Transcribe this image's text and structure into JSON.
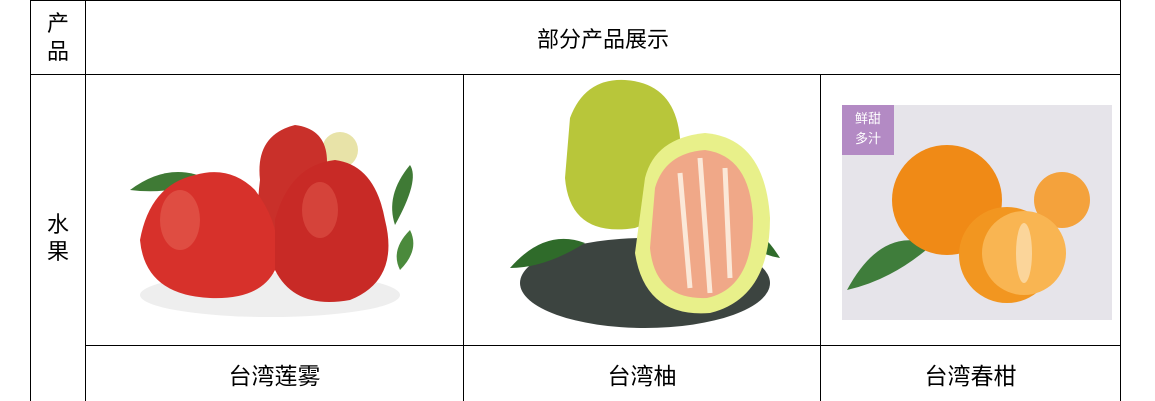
{
  "table": {
    "header": {
      "label": "产品",
      "title": "部分产品展示"
    },
    "category": "水果",
    "products": [
      {
        "name": "台湾莲雾"
      },
      {
        "name": "台湾柚"
      },
      {
        "name": "台湾春柑",
        "badge": [
          "鲜甜",
          "多汁"
        ]
      }
    ]
  }
}
